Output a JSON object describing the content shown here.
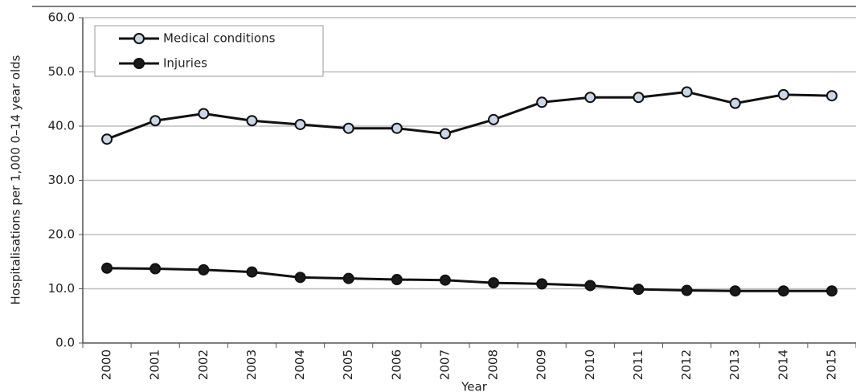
{
  "chart_data": {
    "type": "line",
    "x_label": "Year",
    "y_label": "Hospitalisations per 1,000 0–14 year olds",
    "categories": [
      "2000",
      "2001",
      "2002",
      "2003",
      "2004",
      "2005",
      "2006",
      "2007",
      "2008",
      "2009",
      "2010",
      "2011",
      "2012",
      "2013",
      "2014",
      "2015"
    ],
    "series": [
      {
        "name": "Medical conditions",
        "color": "#c9d7ea",
        "values": [
          37.6,
          41.0,
          42.3,
          41.0,
          40.3,
          39.6,
          39.6,
          38.6,
          41.2,
          44.4,
          45.3,
          45.3,
          46.3,
          44.2,
          45.8,
          45.6
        ]
      },
      {
        "name": "Injuries",
        "color": "#1a1a1a",
        "values": [
          13.8,
          13.7,
          13.5,
          13.1,
          12.1,
          11.9,
          11.7,
          11.6,
          11.1,
          10.9,
          10.6,
          9.9,
          9.7,
          9.6,
          9.6,
          9.6
        ]
      }
    ],
    "ylim": [
      0,
      60
    ],
    "yticks": [
      {
        "value": 0,
        "label": "0.0"
      },
      {
        "value": 10,
        "label": "10.0"
      },
      {
        "value": 20,
        "label": "20.0"
      },
      {
        "value": 30,
        "label": "30.0"
      },
      {
        "value": 40,
        "label": "40.0"
      },
      {
        "value": 50,
        "label": "50.0"
      },
      {
        "value": 60,
        "label": "60.0"
      }
    ],
    "grid": true,
    "legend": "top-left"
  }
}
